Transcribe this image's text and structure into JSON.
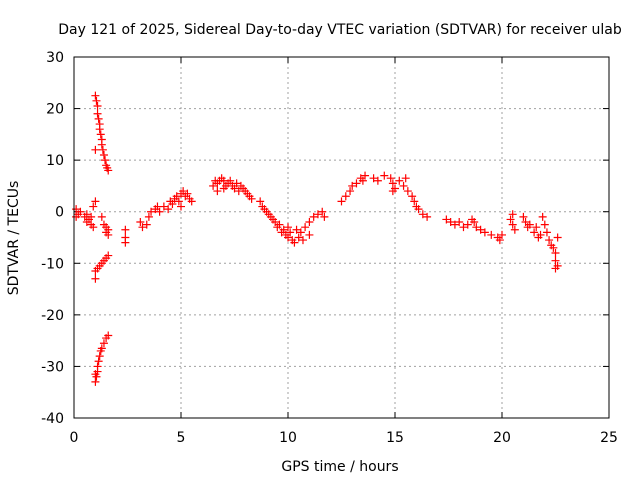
{
  "chart_data": {
    "type": "scatter",
    "title": "Day 121 of 2025, Sidereal Day-to-day VTEC variation (SDTVAR) for receiver ulab",
    "xlabel": "GPS time / hours",
    "ylabel": "SDTVAR / TECUs",
    "xlim": [
      0,
      25
    ],
    "ylim": [
      -40,
      30
    ],
    "xticks": [
      "0",
      "5",
      "10",
      "15",
      "20",
      "25"
    ],
    "yticks": [
      "30",
      "20",
      "10",
      "0",
      "-10",
      "-20",
      "-30",
      "-40"
    ],
    "grid": true,
    "marker": "+",
    "series": [
      {
        "name": "SDTVAR",
        "color": "#ff0000",
        "points": [
          [
            0.1,
            -1.0
          ],
          [
            0.1,
            0.5
          ],
          [
            0.2,
            -0.5
          ],
          [
            0.3,
            0.0
          ],
          [
            0.5,
            -1.0
          ],
          [
            0.6,
            -0.5
          ],
          [
            0.6,
            -2.0
          ],
          [
            0.7,
            -1.5
          ],
          [
            0.8,
            -2.5
          ],
          [
            0.9,
            -3.0
          ],
          [
            0.8,
            -1.0
          ],
          [
            0.9,
            1.0
          ],
          [
            1.0,
            2.0
          ],
          [
            1.0,
            22.5
          ],
          [
            1.05,
            21.5
          ],
          [
            1.1,
            20.5
          ],
          [
            1.1,
            19.0
          ],
          [
            1.15,
            18.0
          ],
          [
            1.2,
            17.0
          ],
          [
            1.2,
            16.0
          ],
          [
            1.25,
            15.0
          ],
          [
            1.3,
            14.0
          ],
          [
            1.3,
            13.0
          ],
          [
            1.35,
            12.0
          ],
          [
            1.4,
            11.0
          ],
          [
            1.45,
            10.0
          ],
          [
            1.5,
            9.0
          ],
          [
            1.55,
            8.5
          ],
          [
            1.6,
            8.0
          ],
          [
            1.0,
            12.0
          ],
          [
            1.0,
            -11.5
          ],
          [
            1.1,
            -11.0
          ],
          [
            1.2,
            -10.5
          ],
          [
            1.3,
            -10.0
          ],
          [
            1.4,
            -9.5
          ],
          [
            1.5,
            -9.0
          ],
          [
            1.6,
            -8.5
          ],
          [
            1.0,
            -13.0
          ],
          [
            1.0,
            -33.0
          ],
          [
            1.05,
            -32.0
          ],
          [
            1.1,
            -31.0
          ],
          [
            1.1,
            -30.0
          ],
          [
            1.15,
            -29.0
          ],
          [
            1.2,
            -28.0
          ],
          [
            1.25,
            -27.0
          ],
          [
            1.3,
            -26.5
          ],
          [
            1.4,
            -25.5
          ],
          [
            1.5,
            -24.5
          ],
          [
            1.6,
            -24.0
          ],
          [
            1.0,
            -31.5
          ],
          [
            1.3,
            -1.0
          ],
          [
            1.4,
            -2.5
          ],
          [
            1.5,
            -3.0
          ],
          [
            1.5,
            -4.0
          ],
          [
            1.6,
            -3.5
          ],
          [
            1.6,
            -4.5
          ],
          [
            2.4,
            -3.5
          ],
          [
            2.4,
            -5.0
          ],
          [
            2.4,
            -6.0
          ],
          [
            3.1,
            -2.0
          ],
          [
            3.2,
            -3.0
          ],
          [
            3.4,
            -2.5
          ],
          [
            3.5,
            -1.0
          ],
          [
            3.6,
            0.0
          ],
          [
            3.8,
            0.5
          ],
          [
            4.0,
            0.0
          ],
          [
            3.9,
            1.0
          ],
          [
            4.2,
            1.0
          ],
          [
            4.4,
            0.5
          ],
          [
            4.5,
            2.0
          ],
          [
            4.6,
            1.5
          ],
          [
            4.7,
            2.5
          ],
          [
            4.8,
            3.0
          ],
          [
            4.9,
            2.0
          ],
          [
            5.0,
            3.5
          ],
          [
            5.1,
            4.0
          ],
          [
            5.2,
            3.0
          ],
          [
            5.3,
            3.5
          ],
          [
            5.4,
            2.5
          ],
          [
            5.5,
            2.0
          ],
          [
            5.0,
            1.0
          ],
          [
            6.5,
            5.0
          ],
          [
            6.6,
            6.0
          ],
          [
            6.7,
            5.5
          ],
          [
            6.8,
            6.0
          ],
          [
            6.9,
            6.5
          ],
          [
            7.0,
            6.0
          ],
          [
            7.1,
            5.0
          ],
          [
            7.2,
            5.5
          ],
          [
            7.3,
            6.0
          ],
          [
            7.4,
            5.0
          ],
          [
            7.5,
            4.5
          ],
          [
            7.6,
            5.5
          ],
          [
            7.7,
            4.0
          ],
          [
            7.8,
            5.0
          ],
          [
            7.9,
            4.5
          ],
          [
            8.0,
            4.0
          ],
          [
            8.1,
            3.5
          ],
          [
            8.2,
            3.0
          ],
          [
            8.3,
            2.5
          ],
          [
            6.7,
            4.0
          ],
          [
            7.0,
            4.5
          ],
          [
            8.7,
            2.0
          ],
          [
            8.8,
            1.0
          ],
          [
            8.9,
            0.5
          ],
          [
            9.0,
            0.0
          ],
          [
            9.1,
            -0.5
          ],
          [
            9.2,
            -1.0
          ],
          [
            9.3,
            -1.5
          ],
          [
            9.4,
            -2.0
          ],
          [
            9.5,
            -3.0
          ],
          [
            9.6,
            -2.5
          ],
          [
            9.7,
            -4.0
          ],
          [
            9.8,
            -3.5
          ],
          [
            9.9,
            -4.5
          ],
          [
            10.0,
            -5.0
          ],
          [
            10.1,
            -4.0
          ],
          [
            10.2,
            -5.5
          ],
          [
            10.3,
            -6.0
          ],
          [
            10.5,
            -5.0
          ],
          [
            10.6,
            -4.0
          ],
          [
            10.8,
            -3.0
          ],
          [
            11.0,
            -2.0
          ],
          [
            11.2,
            -1.0
          ],
          [
            11.4,
            -0.5
          ],
          [
            11.6,
            0.0
          ],
          [
            11.7,
            -1.0
          ],
          [
            10.0,
            -3.0
          ],
          [
            10.4,
            -3.5
          ],
          [
            10.7,
            -5.5
          ],
          [
            11.0,
            -4.5
          ],
          [
            12.5,
            2.0
          ],
          [
            12.7,
            3.0
          ],
          [
            12.9,
            4.0
          ],
          [
            13.0,
            5.0
          ],
          [
            13.2,
            5.5
          ],
          [
            13.4,
            6.5
          ],
          [
            13.5,
            6.0
          ],
          [
            13.6,
            7.0
          ],
          [
            14.0,
            6.5
          ],
          [
            14.2,
            6.0
          ],
          [
            14.5,
            7.0
          ],
          [
            14.8,
            6.5
          ],
          [
            14.9,
            5.5
          ],
          [
            15.0,
            4.5
          ],
          [
            15.2,
            6.0
          ],
          [
            15.4,
            5.0
          ],
          [
            15.6,
            4.0
          ],
          [
            15.8,
            3.0
          ],
          [
            15.9,
            2.0
          ],
          [
            16.0,
            1.0
          ],
          [
            16.1,
            0.5
          ],
          [
            16.3,
            -0.5
          ],
          [
            16.5,
            -1.0
          ],
          [
            14.9,
            4.0
          ],
          [
            15.5,
            6.5
          ],
          [
            17.4,
            -1.5
          ],
          [
            17.6,
            -2.0
          ],
          [
            17.8,
            -2.5
          ],
          [
            18.0,
            -2.0
          ],
          [
            18.2,
            -3.0
          ],
          [
            18.4,
            -2.5
          ],
          [
            18.6,
            -1.5
          ],
          [
            18.7,
            -2.0
          ],
          [
            18.8,
            -3.0
          ],
          [
            19.0,
            -3.5
          ],
          [
            19.2,
            -4.0
          ],
          [
            19.5,
            -4.5
          ],
          [
            19.8,
            -5.0
          ],
          [
            19.9,
            -5.5
          ],
          [
            20.0,
            -4.5
          ],
          [
            20.4,
            -1.5
          ],
          [
            20.5,
            -2.5
          ],
          [
            20.6,
            -3.5
          ],
          [
            20.5,
            -0.5
          ],
          [
            21.0,
            -1.0
          ],
          [
            21.1,
            -2.0
          ],
          [
            21.2,
            -3.0
          ],
          [
            21.3,
            -2.5
          ],
          [
            21.5,
            -4.0
          ],
          [
            21.6,
            -3.0
          ],
          [
            21.7,
            -5.0
          ],
          [
            21.8,
            -4.5
          ],
          [
            21.9,
            -1.0
          ],
          [
            22.0,
            -2.5
          ],
          [
            22.1,
            -4.0
          ],
          [
            22.2,
            -5.5
          ],
          [
            22.3,
            -6.5
          ],
          [
            22.4,
            -7.0
          ],
          [
            22.5,
            -8.0
          ],
          [
            22.5,
            -9.5
          ],
          [
            22.6,
            -10.5
          ],
          [
            22.6,
            -5.0
          ],
          [
            22.5,
            -11.0
          ]
        ]
      }
    ]
  }
}
